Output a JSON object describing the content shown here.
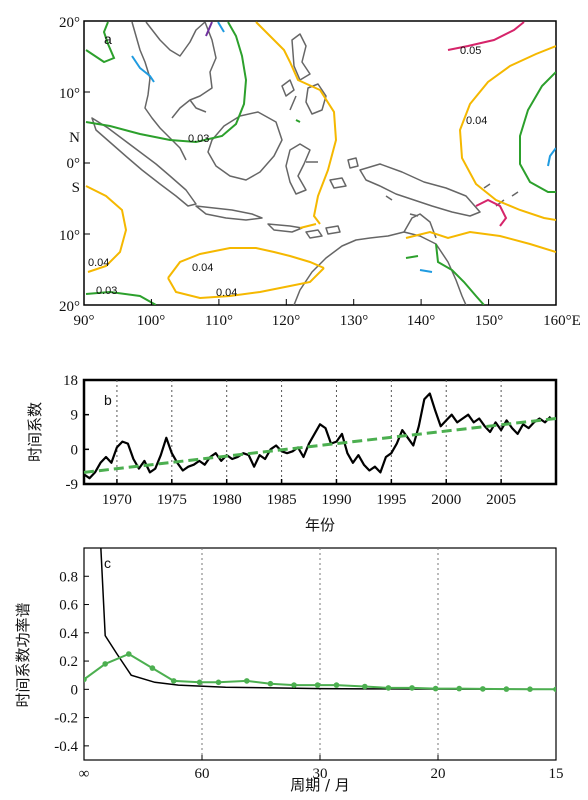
{
  "colors": {
    "green": "#2ca02c",
    "orange": "#f5b800",
    "magenta": "#d6246a",
    "blue": "#1f9be0",
    "purple": "#7030a0",
    "coast": "#666666",
    "black": "#000000",
    "light_green": "#4caf50"
  },
  "chart_data": [
    {
      "type": "contour_map",
      "panel_label": "a",
      "x_ticks": [
        "90°",
        "100°",
        "110°",
        "120°",
        "130°",
        "140°",
        "150°",
        "160°E"
      ],
      "y_ticks": [
        "20°",
        "10°",
        "0°",
        "10°",
        "20°"
      ],
      "hemisphere_labels": [
        "N",
        "S"
      ],
      "xlim": [
        90,
        160
      ],
      "ylim": [
        -20,
        20
      ],
      "contour_labels": [
        "0.05",
        "0.04",
        "0.03",
        "0.04",
        "0.03",
        "0.04",
        "0.04"
      ]
    },
    {
      "type": "line",
      "panel_label": "b",
      "ylabel": "时间系数",
      "xlabel": "年份",
      "xlim": [
        1967,
        2010
      ],
      "ylim": [
        -9,
        18
      ],
      "x_ticks": [
        1970,
        1975,
        1980,
        1985,
        1990,
        1995,
        2000,
        2005
      ],
      "y_ticks": [
        -9,
        0,
        9,
        18
      ],
      "series": [
        {
          "style": "solid-black",
          "x": [
            1967.0,
            1967.5,
            1968.0,
            1968.5,
            1969.0,
            1969.5,
            1970.0,
            1970.5,
            1971.0,
            1971.5,
            1972.0,
            1972.5,
            1973.0,
            1973.5,
            1974.0,
            1974.5,
            1975.0,
            1975.5,
            1976.0,
            1976.5,
            1977.0,
            1977.5,
            1978.0,
            1978.5,
            1979.0,
            1979.5,
            1980.0,
            1980.5,
            1981.0,
            1981.5,
            1982.0,
            1982.5,
            1983.0,
            1983.5,
            1984.0,
            1984.5,
            1985.0,
            1985.5,
            1986.0,
            1986.5,
            1987.0,
            1987.5,
            1988.0,
            1988.5,
            1989.0,
            1989.5,
            1990.0,
            1990.5,
            1991.0,
            1991.5,
            1992.0,
            1992.5,
            1993.0,
            1993.5,
            1994.0,
            1994.5,
            1995.0,
            1995.5,
            1996.0,
            1996.5,
            1997.0,
            1997.5,
            1998.0,
            1998.5,
            1999.0,
            1999.5,
            2000.0,
            2000.5,
            2001.0,
            2001.5,
            2002.0,
            2002.5,
            2003.0,
            2003.5,
            2004.0,
            2004.5,
            2005.0,
            2005.5,
            2006.0,
            2006.5,
            2007.0,
            2007.5,
            2008.0,
            2008.5,
            2009.0,
            2009.5
          ],
          "y": [
            -6.5,
            -7.5,
            -6.0,
            -3.5,
            -2.0,
            -3.5,
            0.5,
            2.0,
            1.5,
            -2.5,
            -5.0,
            -3.0,
            -6.0,
            -5.0,
            -1.5,
            3.0,
            -1.0,
            -3.5,
            -5.5,
            -4.5,
            -4.0,
            -3.0,
            -4.0,
            -2.0,
            -1.0,
            -3.0,
            -1.5,
            -2.5,
            -2.0,
            -1.0,
            -1.5,
            -4.5,
            -1.5,
            -2.5,
            0.0,
            1.0,
            -0.5,
            -1.0,
            -0.5,
            0.5,
            -2.0,
            1.5,
            4.0,
            6.5,
            5.5,
            1.5,
            2.0,
            4.0,
            -1.0,
            -3.5,
            -1.5,
            -4.0,
            -5.5,
            -4.5,
            -6.0,
            -2.0,
            -1.0,
            1.5,
            5.0,
            3.0,
            1.0,
            6.0,
            13.0,
            14.5,
            10.0,
            6.0,
            7.5,
            9.0,
            7.0,
            8.0,
            9.0,
            7.0,
            8.0,
            6.0,
            4.5,
            7.0,
            5.0,
            7.5,
            5.5,
            4.0,
            6.5,
            5.5,
            7.0,
            8.0,
            7.0,
            8.5
          ]
        },
        {
          "style": "dashed-green",
          "x": [
            1967,
            2010
          ],
          "y": [
            -6.0,
            8.0
          ]
        }
      ]
    },
    {
      "type": "line",
      "panel_label": "c",
      "ylabel": "时间系数功率谱",
      "xlabel": "周期 / 月",
      "xlim": [
        0,
        1
      ],
      "ylim": [
        -0.5,
        1.0
      ],
      "x_ticks": [
        {
          "f": 0.0,
          "label": "∞"
        },
        {
          "f": 0.25,
          "label": "60"
        },
        {
          "f": 0.5,
          "label": "30"
        },
        {
          "f": 0.75,
          "label": "20"
        },
        {
          "f": 1.0,
          "label": "15"
        }
      ],
      "y_ticks": [
        -0.4,
        -0.2,
        0,
        0.2,
        0.4,
        0.6,
        0.8
      ],
      "series": [
        {
          "style": "solid-black",
          "x": [
            0.035,
            0.045,
            0.07,
            0.1,
            0.15,
            0.2,
            0.3,
            0.4,
            0.5,
            0.6,
            0.8,
            1.0
          ],
          "y": [
            1.05,
            0.38,
            0.25,
            0.1,
            0.05,
            0.03,
            0.015,
            0.01,
            0.005,
            0.003,
            0.002,
            0.001
          ],
          "clip_top": true
        },
        {
          "style": "green-dots",
          "x": [
            0.0,
            0.045,
            0.095,
            0.145,
            0.19,
            0.245,
            0.285,
            0.345,
            0.395,
            0.445,
            0.495,
            0.535,
            0.595,
            0.645,
            0.695,
            0.745,
            0.795,
            0.845,
            0.895,
            0.945,
            1.0
          ],
          "y": [
            0.07,
            0.18,
            0.25,
            0.15,
            0.06,
            0.05,
            0.05,
            0.06,
            0.04,
            0.03,
            0.03,
            0.03,
            0.02,
            0.01,
            0.01,
            0.005,
            0.005,
            0.003,
            0.002,
            0.001,
            0.0
          ]
        }
      ]
    }
  ]
}
